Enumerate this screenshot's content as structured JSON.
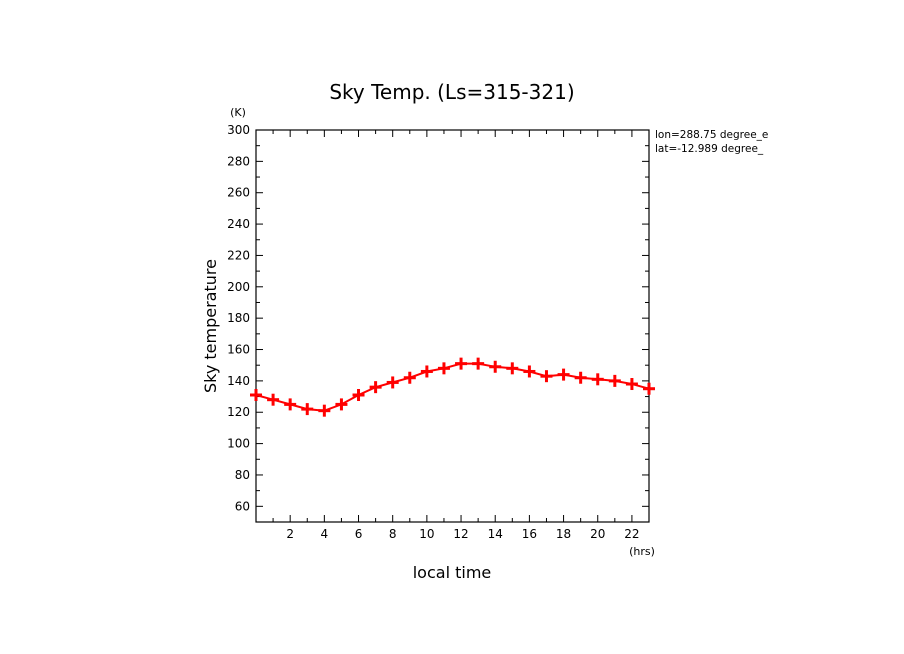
{
  "chart_data": {
    "type": "line",
    "title": "Sky Temp. (Ls=315-321)",
    "xlabel": "local time",
    "ylabel": "Sky temperature",
    "x_unit": "(hrs)",
    "y_unit": "(K)",
    "xlim": [
      0,
      23
    ],
    "ylim": [
      50,
      300
    ],
    "x_ticks": [
      2,
      4,
      6,
      8,
      10,
      12,
      14,
      16,
      18,
      20,
      22
    ],
    "y_ticks": [
      60,
      80,
      100,
      120,
      140,
      160,
      180,
      200,
      220,
      240,
      260,
      280,
      300
    ],
    "annotations": [
      "lon=288.75 degree_e",
      "lat=-12.989 degree_"
    ],
    "line_color": "#ff0000",
    "marker": "plus",
    "series": [
      {
        "x": [
          0,
          1,
          2,
          3,
          4,
          5,
          6,
          7,
          8,
          9,
          10,
          11,
          12,
          13,
          14,
          15,
          16,
          17,
          18,
          19,
          20,
          21,
          22,
          23
        ],
        "values": [
          131,
          128,
          125,
          122,
          121,
          125,
          131,
          136,
          139,
          142,
          146,
          148,
          151,
          151,
          149,
          148,
          146,
          143,
          144,
          142,
          141,
          140,
          138,
          135
        ]
      }
    ]
  }
}
